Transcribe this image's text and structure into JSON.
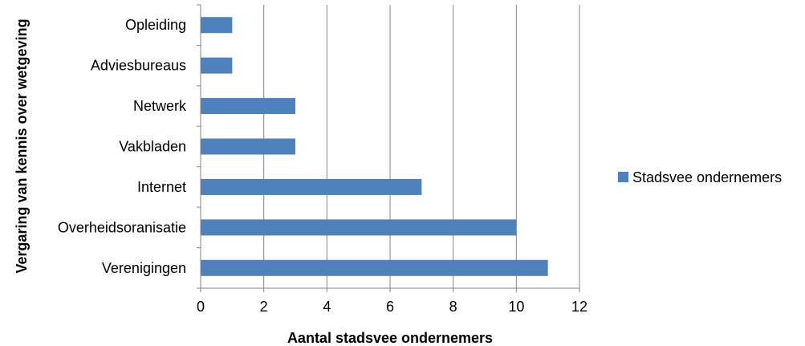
{
  "chart_data": {
    "type": "bar",
    "orientation": "horizontal",
    "categories": [
      "Opleiding",
      "Adviesbureaus",
      "Netwerk",
      "Vakbladen",
      "Internet",
      "Overheidsoranisatie",
      "Verenigingen"
    ],
    "series": [
      {
        "name": "Stadsvee ondernemers",
        "values": [
          1,
          1,
          3,
          3,
          7,
          10,
          11
        ],
        "color": "#4F81BD"
      }
    ],
    "xlabel": "Aantal stadsvee ondernemers",
    "ylabel": "Vergaring van kennis over wetgeving",
    "xlim": [
      0,
      12
    ],
    "xticks": [
      0,
      2,
      4,
      6,
      8,
      10,
      12
    ],
    "grid": "vertical",
    "legend_position": "right",
    "gridline_color": "#868686",
    "axis_color": "#868686"
  }
}
